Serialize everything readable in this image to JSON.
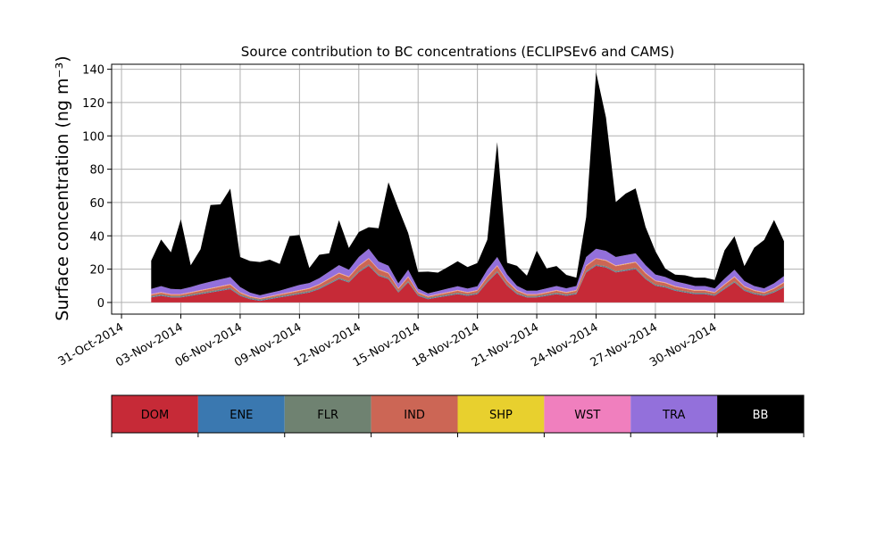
{
  "chart_data": {
    "type": "area",
    "stacked": true,
    "title": "Source contribution to BC concentrations (ECLIPSEv6 and CAMS)",
    "ylabel": "Surface concentration (ng m⁻³)",
    "xlabel": "",
    "ylim": [
      -7,
      143
    ],
    "xlim": [
      "2014-10-30T12:00",
      "2014-12-04T12:00"
    ],
    "grid": true,
    "yticks": [
      "0",
      "20",
      "40",
      "60",
      "80",
      "100",
      "120",
      "140"
    ],
    "xticks": [
      "31-Oct-2014",
      "03-Nov-2014",
      "06-Nov-2014",
      "09-Nov-2014",
      "12-Nov-2014",
      "15-Nov-2014",
      "18-Nov-2014",
      "21-Nov-2014",
      "24-Nov-2014",
      "27-Nov-2014",
      "30-Nov-2014"
    ],
    "legend": {
      "placement": "bottom colorbar",
      "entries": [
        {
          "name": "DOM",
          "color": "#c62a37"
        },
        {
          "name": "ENE",
          "color": "#3a78b0"
        },
        {
          "name": "FLR",
          "color": "#6f8271"
        },
        {
          "name": "IND",
          "color": "#cc6655"
        },
        {
          "name": "SHP",
          "color": "#e8d02e"
        },
        {
          "name": "WST",
          "color": "#f07fbe"
        },
        {
          "name": "TRA",
          "color": "#9370db"
        },
        {
          "name": "BB",
          "color": "#000000"
        }
      ]
    },
    "x": [
      "2014-11-01T12:00",
      "2014-11-02T00:00",
      "2014-11-02T12:00",
      "2014-11-03T00:00",
      "2014-11-03T12:00",
      "2014-11-04T00:00",
      "2014-11-04T12:00",
      "2014-11-05T00:00",
      "2014-11-05T12:00",
      "2014-11-06T00:00",
      "2014-11-06T12:00",
      "2014-11-07T00:00",
      "2014-11-07T12:00",
      "2014-11-08T00:00",
      "2014-11-08T12:00",
      "2014-11-09T00:00",
      "2014-11-09T12:00",
      "2014-11-10T00:00",
      "2014-11-10T12:00",
      "2014-11-11T00:00",
      "2014-11-11T12:00",
      "2014-11-12T00:00",
      "2014-11-12T12:00",
      "2014-11-13T00:00",
      "2014-11-13T12:00",
      "2014-11-14T00:00",
      "2014-11-14T12:00",
      "2014-11-15T00:00",
      "2014-11-15T12:00",
      "2014-11-16T00:00",
      "2014-11-16T12:00",
      "2014-11-17T00:00",
      "2014-11-17T12:00",
      "2014-11-18T00:00",
      "2014-11-18T12:00",
      "2014-11-19T00:00",
      "2014-11-19T12:00",
      "2014-11-20T00:00",
      "2014-11-20T12:00",
      "2014-11-21T00:00",
      "2014-11-21T12:00",
      "2014-11-22T00:00",
      "2014-11-22T12:00",
      "2014-11-23T00:00",
      "2014-11-23T12:00",
      "2014-11-24T00:00",
      "2014-11-24T12:00",
      "2014-11-25T00:00",
      "2014-11-25T12:00",
      "2014-11-26T00:00",
      "2014-11-26T12:00",
      "2014-11-27T00:00",
      "2014-11-27T12:00",
      "2014-11-28T00:00",
      "2014-11-28T12:00",
      "2014-11-29T00:00",
      "2014-11-29T12:00",
      "2014-11-30T00:00",
      "2014-11-30T12:00",
      "2014-12-01T00:00",
      "2014-12-01T12:00",
      "2014-12-02T00:00",
      "2014-12-02T12:00",
      "2014-12-03T00:00",
      "2014-12-03T12:00"
    ],
    "series": [
      {
        "name": "DOM",
        "values": [
          3,
          4,
          3,
          3,
          4,
          5,
          6,
          7,
          8,
          4,
          2,
          1,
          2,
          3,
          4,
          5,
          6,
          8,
          11,
          14,
          12,
          18,
          22,
          16,
          14,
          6,
          12,
          4,
          2,
          3,
          4,
          5,
          4,
          5,
          12,
          18,
          10,
          5,
          3,
          3,
          4,
          5,
          4,
          5,
          18,
          22,
          21,
          18,
          19,
          20,
          14,
          10,
          9,
          7,
          6,
          5,
          5,
          4,
          8,
          12,
          7,
          5,
          4,
          6,
          9
        ]
      },
      {
        "name": "ENE",
        "values": [
          0.3,
          0.3,
          0.3,
          0.3,
          0.3,
          0.3,
          0.3,
          0.3,
          0.3,
          0.3,
          0.3,
          0.3,
          0.3,
          0.3,
          0.3,
          0.3,
          0.3,
          0.3,
          0.3,
          0.3,
          0.3,
          0.3,
          0.3,
          0.3,
          0.3,
          0.3,
          0.3,
          0.3,
          0.3,
          0.3,
          0.3,
          0.3,
          0.3,
          0.3,
          0.3,
          0.3,
          0.3,
          0.3,
          0.3,
          0.3,
          0.3,
          0.3,
          0.3,
          0.3,
          0.3,
          0.3,
          0.3,
          0.3,
          0.3,
          0.3,
          0.3,
          0.3,
          0.3,
          0.3,
          0.3,
          0.3,
          0.3,
          0.3,
          0.3,
          0.3,
          0.3,
          0.3,
          0.3,
          0.3,
          0.3
        ]
      },
      {
        "name": "FLR",
        "values": [
          0.5,
          0.5,
          0.5,
          0.5,
          0.5,
          0.5,
          0.5,
          0.5,
          0.5,
          0.5,
          0.5,
          0.5,
          0.5,
          0.5,
          0.5,
          0.5,
          0.5,
          0.5,
          0.5,
          0.5,
          0.5,
          0.5,
          0.5,
          0.5,
          0.5,
          0.5,
          0.5,
          0.5,
          0.5,
          0.5,
          0.5,
          0.5,
          0.5,
          0.5,
          0.5,
          0.5,
          0.5,
          0.5,
          0.5,
          0.5,
          0.5,
          0.5,
          0.5,
          0.5,
          0.5,
          0.5,
          0.5,
          0.5,
          0.5,
          0.5,
          0.5,
          0.5,
          0.5,
          0.5,
          0.5,
          0.5,
          0.5,
          0.5,
          0.5,
          0.5,
          0.5,
          0.5,
          0.5,
          0.5,
          0.5
        ]
      },
      {
        "name": "IND",
        "values": [
          0.8,
          1,
          0.8,
          0.8,
          1,
          1.2,
          1.4,
          1.6,
          1.8,
          1,
          0.6,
          0.4,
          0.6,
          0.8,
          1,
          1.2,
          1.4,
          1.8,
          2.2,
          2.6,
          2.4,
          3,
          3.4,
          2.8,
          2.6,
          1.4,
          2.4,
          1,
          0.6,
          0.8,
          1,
          1.2,
          1,
          1.2,
          2.4,
          3,
          2,
          1.2,
          0.8,
          0.8,
          1,
          1.2,
          1,
          1.2,
          3,
          3.4,
          3.2,
          3,
          3.1,
          3.2,
          2.6,
          2,
          1.8,
          1.6,
          1.4,
          1.2,
          1.2,
          1,
          1.8,
          2.4,
          1.6,
          1.2,
          1,
          1.4,
          2
        ]
      },
      {
        "name": "SHP",
        "values": [
          0.2,
          0.2,
          0.2,
          0.2,
          0.2,
          0.2,
          0.2,
          0.2,
          0.2,
          0.2,
          0.2,
          0.2,
          0.2,
          0.2,
          0.2,
          0.2,
          0.2,
          0.2,
          0.2,
          0.2,
          0.2,
          0.2,
          0.2,
          0.2,
          0.2,
          0.2,
          0.2,
          0.2,
          0.2,
          0.2,
          0.2,
          0.2,
          0.2,
          0.2,
          0.2,
          0.2,
          0.2,
          0.2,
          0.2,
          0.2,
          0.2,
          0.2,
          0.2,
          0.2,
          0.2,
          0.2,
          0.2,
          0.2,
          0.2,
          0.2,
          0.2,
          0.2,
          0.2,
          0.2,
          0.2,
          0.2,
          0.2,
          0.2,
          0.2,
          0.2,
          0.2,
          0.2,
          0.2,
          0.2,
          0.2
        ]
      },
      {
        "name": "WST",
        "values": [
          0.3,
          0.3,
          0.3,
          0.3,
          0.3,
          0.3,
          0.3,
          0.3,
          0.3,
          0.3,
          0.3,
          0.3,
          0.3,
          0.3,
          0.3,
          0.3,
          0.3,
          0.3,
          0.3,
          0.3,
          0.3,
          0.3,
          0.3,
          0.3,
          0.3,
          0.3,
          0.3,
          0.3,
          0.3,
          0.3,
          0.3,
          0.3,
          0.3,
          0.3,
          0.3,
          0.3,
          0.3,
          0.3,
          0.3,
          0.3,
          0.3,
          0.3,
          0.3,
          0.3,
          0.3,
          0.3,
          0.3,
          0.3,
          0.3,
          0.3,
          0.3,
          0.3,
          0.3,
          0.3,
          0.3,
          0.3,
          0.3,
          0.3,
          0.3,
          0.3,
          0.3,
          0.3,
          0.3,
          0.3,
          0.3
        ]
      },
      {
        "name": "TRA",
        "values": [
          3,
          3.5,
          3,
          2.8,
          3,
          3.5,
          3.8,
          4,
          4.2,
          3,
          2,
          1.6,
          1.8,
          2,
          2.5,
          3,
          3,
          3.5,
          4,
          4.5,
          4,
          5,
          5.5,
          4.5,
          4.2,
          2.8,
          4,
          2,
          1.6,
          1.8,
          2,
          2.2,
          2,
          2.2,
          4,
          5,
          3.5,
          2.5,
          2,
          2,
          2.2,
          2.4,
          2.2,
          2.4,
          5,
          5.5,
          5.5,
          5,
          5,
          5,
          4.5,
          3.5,
          3.2,
          2.8,
          2.6,
          2.4,
          2.4,
          2.2,
          3.2,
          4,
          3,
          2.4,
          2.2,
          2.8,
          3.5
        ]
      },
      {
        "name": "BB",
        "values": [
          17,
          28,
          22,
          42,
          13,
          21,
          46,
          45,
          53,
          18,
          19,
          20,
          20,
          16,
          31,
          30,
          9,
          14,
          11,
          27,
          13,
          15,
          13,
          20,
          50,
          45,
          22,
          10,
          13,
          11,
          13,
          15,
          13,
          14,
          18,
          69,
          7,
          12,
          9,
          24,
          12,
          12,
          8,
          5,
          24,
          106,
          80,
          33,
          37,
          39,
          23,
          14,
          5,
          4,
          5,
          5,
          5,
          5,
          17,
          20,
          9,
          23,
          29,
          38,
          21
        ]
      }
    ]
  }
}
